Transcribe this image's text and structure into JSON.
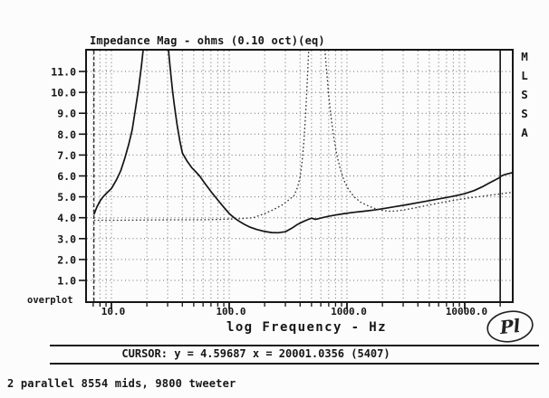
{
  "window": {
    "bg": "#fcfcfc",
    "ink": "#161616",
    "grid": "#6a6a6a"
  },
  "header": {
    "title": "Impedance Mag - ohms (0.10 oct)(eq)"
  },
  "side_label": "MLSSA",
  "overplot_label": "overplot",
  "x_axis": {
    "label": "log Frequency - Hz",
    "tick_labels": [
      "10.0",
      "100.0",
      "1000.0",
      "10000.0"
    ],
    "tick_values": [
      10,
      100,
      1000,
      10000
    ]
  },
  "y_axis": {
    "tick_labels": [
      "1.0",
      "2.0",
      "3.0",
      "4.0",
      "5.0",
      "6.0",
      "7.0",
      "8.0",
      "9.0",
      "10.0",
      "11.0"
    ],
    "tick_values": [
      1,
      2,
      3,
      4,
      5,
      6,
      7,
      8,
      9,
      10,
      11
    ]
  },
  "cursor_bar": {
    "text": "CURSOR: y = 4.59687 x = 20001.0356 (5407)"
  },
  "caption": "2 parallel 8554 mids, 9800 tweeter",
  "logo": "Pl",
  "chart_data": {
    "type": "line",
    "title": "Impedance Mag - ohms (0.10 oct)(eq)",
    "xlabel": "log Frequency - Hz",
    "ylabel": "ohms",
    "x_scale": "log",
    "xlim": [
      6.1,
      25900
    ],
    "ylim": [
      0,
      12
    ],
    "grid": true,
    "legend_position": "none",
    "cursor": {
      "x": 20001.0356,
      "y": 4.59687,
      "sample": 5407
    },
    "data_start_marker_hz": 7.1,
    "series": [
      {
        "name": "2 parallel 8554 mids",
        "style": "solid",
        "points": [
          [
            7.1,
            4.15
          ],
          [
            7.5,
            4.5
          ],
          [
            8,
            4.8
          ],
          [
            8.5,
            5.0
          ],
          [
            9,
            5.15
          ],
          [
            10,
            5.4
          ],
          [
            11,
            5.8
          ],
          [
            12,
            6.25
          ],
          [
            13,
            6.85
          ],
          [
            14,
            7.5
          ],
          [
            15,
            8.2
          ],
          [
            16,
            9.2
          ],
          [
            17,
            10.2
          ],
          [
            18,
            11.3
          ],
          [
            19,
            12.5
          ],
          [
            30,
            12.5
          ],
          [
            31,
            11.6
          ],
          [
            32,
            10.8
          ],
          [
            33,
            10.1
          ],
          [
            34,
            9.5
          ],
          [
            36,
            8.5
          ],
          [
            38,
            7.7
          ],
          [
            40,
            7.1
          ],
          [
            44,
            6.7
          ],
          [
            48,
            6.4
          ],
          [
            52,
            6.2
          ],
          [
            56,
            6.0
          ],
          [
            63,
            5.6
          ],
          [
            70,
            5.25
          ],
          [
            80,
            4.85
          ],
          [
            90,
            4.5
          ],
          [
            100,
            4.2
          ],
          [
            110,
            4.0
          ],
          [
            120,
            3.85
          ],
          [
            135,
            3.68
          ],
          [
            150,
            3.55
          ],
          [
            170,
            3.44
          ],
          [
            200,
            3.34
          ],
          [
            230,
            3.29
          ],
          [
            260,
            3.28
          ],
          [
            300,
            3.33
          ],
          [
            340,
            3.5
          ],
          [
            380,
            3.68
          ],
          [
            420,
            3.8
          ],
          [
            460,
            3.9
          ],
          [
            500,
            3.98
          ],
          [
            540,
            3.92
          ],
          [
            580,
            3.96
          ],
          [
            640,
            4.02
          ],
          [
            700,
            4.07
          ],
          [
            800,
            4.13
          ],
          [
            950,
            4.2
          ],
          [
            1150,
            4.26
          ],
          [
            1400,
            4.31
          ],
          [
            1700,
            4.37
          ],
          [
            2000,
            4.43
          ],
          [
            2500,
            4.52
          ],
          [
            3200,
            4.62
          ],
          [
            4000,
            4.72
          ],
          [
            5000,
            4.82
          ],
          [
            6300,
            4.92
          ],
          [
            8000,
            5.03
          ],
          [
            10000,
            5.15
          ],
          [
            12000,
            5.3
          ],
          [
            14000,
            5.47
          ],
          [
            16000,
            5.65
          ],
          [
            18000,
            5.8
          ],
          [
            19500,
            5.9
          ],
          [
            20500,
            6.0
          ],
          [
            22000,
            6.07
          ],
          [
            25800,
            6.17
          ]
        ]
      },
      {
        "name": "9800 tweeter",
        "style": "dotted",
        "points": [
          [
            7.1,
            3.88
          ],
          [
            12,
            3.88
          ],
          [
            20,
            3.89
          ],
          [
            35,
            3.9
          ],
          [
            60,
            3.9
          ],
          [
            90,
            3.92
          ],
          [
            120,
            3.95
          ],
          [
            160,
            4.0
          ],
          [
            200,
            4.2
          ],
          [
            240,
            4.4
          ],
          [
            280,
            4.6
          ],
          [
            320,
            4.85
          ],
          [
            355,
            5.05
          ],
          [
            380,
            5.45
          ],
          [
            400,
            5.95
          ],
          [
            415,
            6.6
          ],
          [
            430,
            7.6
          ],
          [
            445,
            8.9
          ],
          [
            458,
            10.3
          ],
          [
            470,
            11.7
          ],
          [
            478,
            12.5
          ],
          [
            640,
            12.5
          ],
          [
            665,
            11.3
          ],
          [
            695,
            10.0
          ],
          [
            730,
            8.9
          ],
          [
            770,
            7.9
          ],
          [
            820,
            7.0
          ],
          [
            880,
            6.3
          ],
          [
            950,
            5.75
          ],
          [
            1030,
            5.35
          ],
          [
            1150,
            5.0
          ],
          [
            1300,
            4.75
          ],
          [
            1500,
            4.58
          ],
          [
            1700,
            4.45
          ],
          [
            1950,
            4.36
          ],
          [
            2250,
            4.31
          ],
          [
            2600,
            4.32
          ],
          [
            3100,
            4.38
          ],
          [
            3800,
            4.47
          ],
          [
            4700,
            4.58
          ],
          [
            6000,
            4.7
          ],
          [
            7500,
            4.8
          ],
          [
            9500,
            4.9
          ],
          [
            12000,
            4.98
          ],
          [
            15000,
            5.05
          ],
          [
            18000,
            5.11
          ],
          [
            20000,
            5.14
          ],
          [
            22500,
            5.18
          ],
          [
            25800,
            5.22
          ]
        ]
      }
    ]
  }
}
